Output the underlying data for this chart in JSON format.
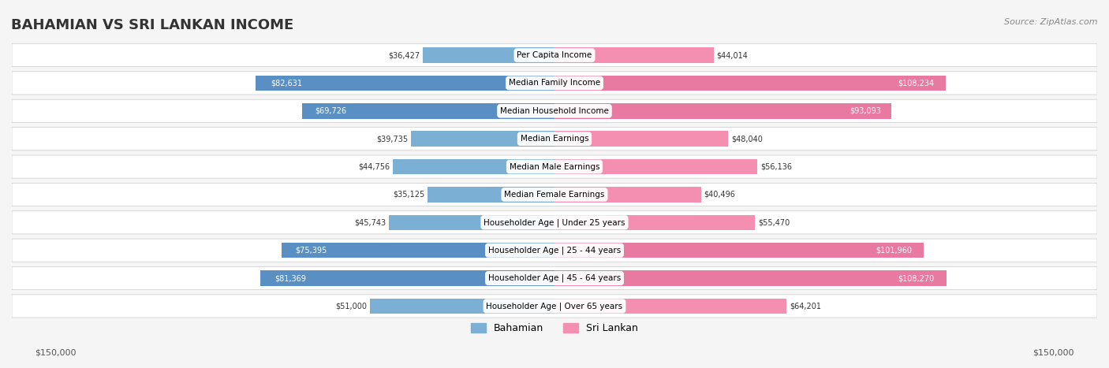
{
  "title": "BAHAMIAN VS SRI LANKAN INCOME",
  "source": "Source: ZipAtlas.com",
  "categories": [
    "Per Capita Income",
    "Median Family Income",
    "Median Household Income",
    "Median Earnings",
    "Median Male Earnings",
    "Median Female Earnings",
    "Householder Age | Under 25 years",
    "Householder Age | 25 - 44 years",
    "Householder Age | 45 - 64 years",
    "Householder Age | Over 65 years"
  ],
  "bahamian": [
    36427,
    82631,
    69726,
    39735,
    44756,
    35125,
    45743,
    75395,
    81369,
    51000
  ],
  "sri_lankan": [
    44014,
    108234,
    93093,
    48040,
    56136,
    40496,
    55470,
    101960,
    108270,
    64201
  ],
  "bahamian_color": "#7bafd4",
  "sri_lankan_color": "#f48fb1",
  "bahamian_dark": "#5a8fc4",
  "sri_lankan_dark": "#e879a0",
  "max_val": 150000,
  "bg_color": "#f5f5f5",
  "row_bg": "#ffffff",
  "label_bg": "#ffffff",
  "legend_labels": [
    "Bahamian",
    "Sri Lankan"
  ],
  "xlabel_left": "$150,000",
  "xlabel_right": "$150,000"
}
